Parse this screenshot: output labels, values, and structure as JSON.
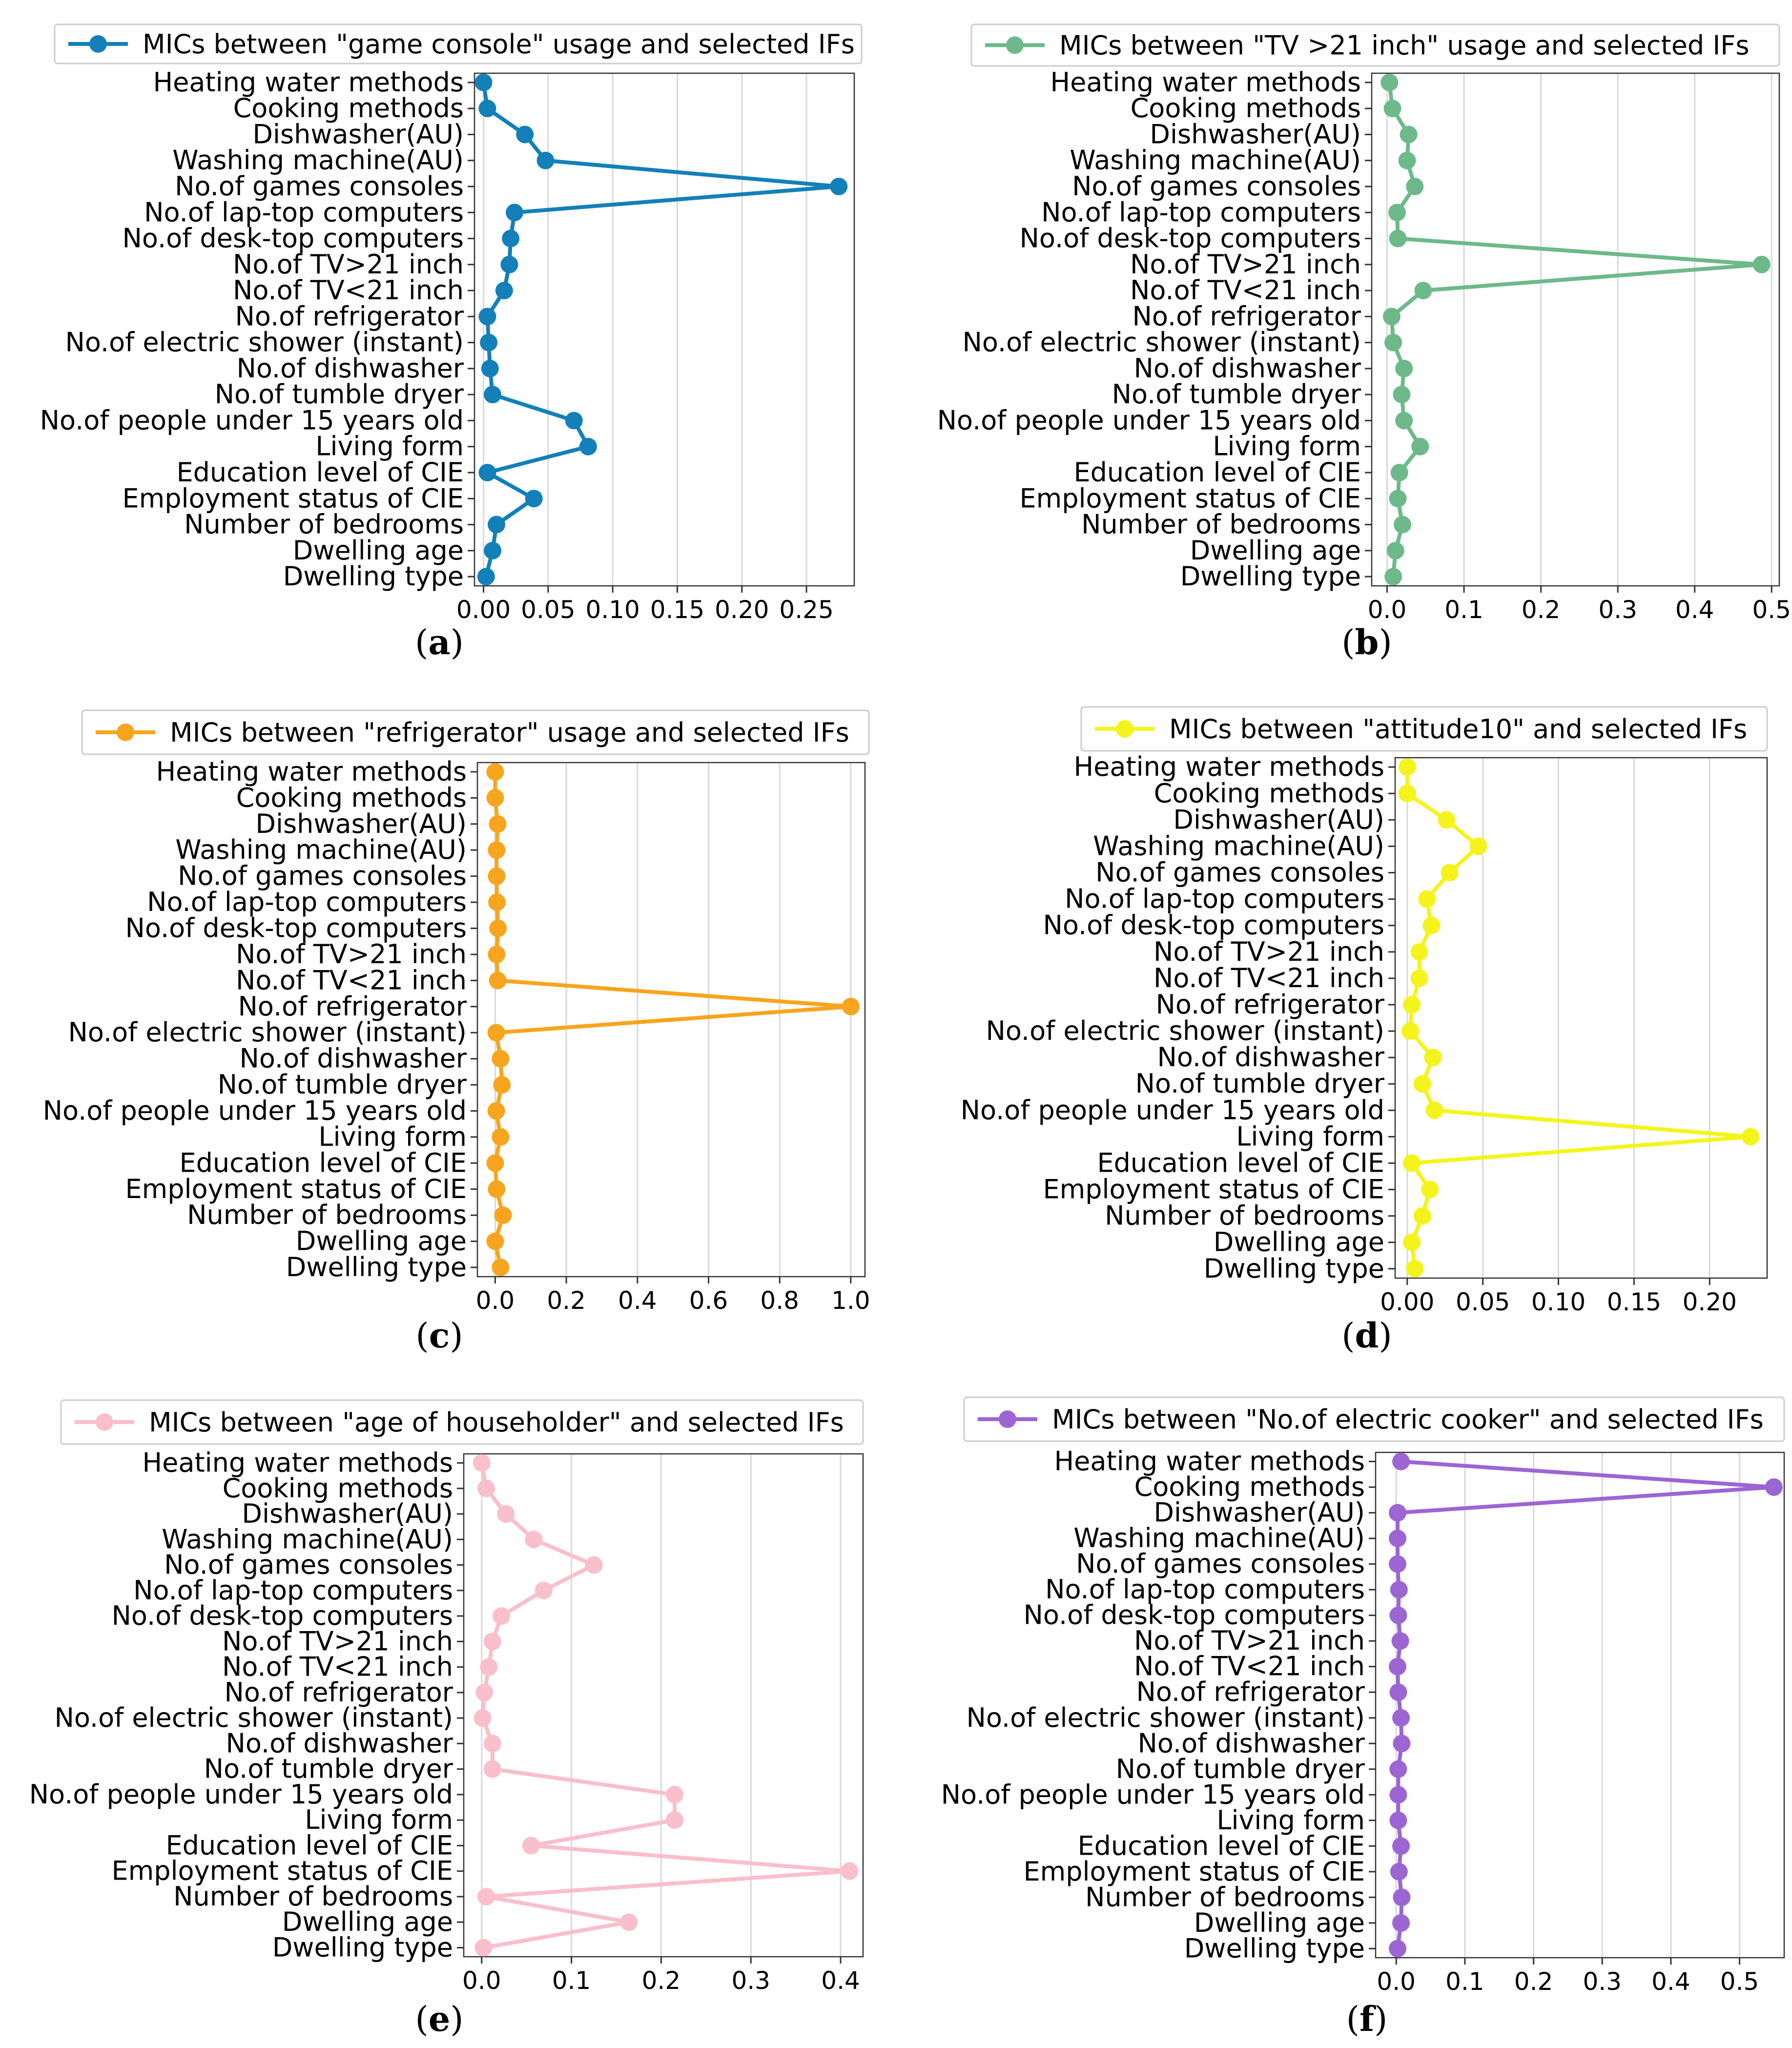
{
  "categories": [
    "Heating water methods",
    "Cooking methods",
    "Dishwasher(AU)",
    "Washing machine(AU)",
    "No.of games consoles",
    "No.of lap-top computers",
    "No.of desk-top computers",
    "No.of TV>21 inch",
    "No.of TV<21 inch",
    "No.of refrigerator",
    "No.of electric shower (instant)",
    "No.of dishwasher",
    "No.of tumble dryer",
    "No.of people under 15 years old",
    "Living form",
    "Education level of CIE",
    "Employment status of CIE",
    "Number of bedrooms",
    "Dwelling age",
    "Dwelling type"
  ],
  "chart_data": [
    {
      "type": "line",
      "panel": "(a)",
      "series": [
        {
          "name": "MICs between \"game console\" usage and selected IFs",
          "color": "#1380b9",
          "values": [
            0.0,
            0.003,
            0.032,
            0.048,
            0.275,
            0.024,
            0.021,
            0.02,
            0.016,
            0.003,
            0.004,
            0.005,
            0.007,
            0.07,
            0.081,
            0.003,
            0.039,
            0.01,
            0.007,
            0.002
          ]
        }
      ],
      "xlim": [
        -0.007,
        0.287
      ],
      "xticks": [
        0.0,
        0.05,
        0.1,
        0.15,
        0.2,
        0.25
      ],
      "xtick_labels": [
        "0.00",
        "0.05",
        "0.10",
        "0.15",
        "0.20",
        "0.25"
      ]
    },
    {
      "type": "line",
      "panel": "(b)",
      "series": [
        {
          "name": "MICs between \"TV >21 inch\" usage and selected IFs",
          "color": "#6db98a",
          "values": [
            0.003,
            0.007,
            0.028,
            0.026,
            0.036,
            0.013,
            0.014,
            0.487,
            0.047,
            0.006,
            0.008,
            0.022,
            0.019,
            0.022,
            0.043,
            0.016,
            0.014,
            0.02,
            0.011,
            0.008
          ]
        }
      ],
      "xlim": [
        -0.02,
        0.51
      ],
      "xticks": [
        0.0,
        0.1,
        0.2,
        0.3,
        0.4,
        0.5
      ],
      "xtick_labels": [
        "0.0",
        "0.1",
        "0.2",
        "0.3",
        "0.4",
        "0.5"
      ]
    },
    {
      "type": "line",
      "panel": "(c)",
      "series": [
        {
          "name": "MICs between \"refrigerator\" usage and selected IFs",
          "color": "#f7a51e",
          "values": [
            0.0,
            0.0,
            0.007,
            0.004,
            0.004,
            0.005,
            0.008,
            0.004,
            0.007,
            1.0,
            0.003,
            0.015,
            0.019,
            0.003,
            0.015,
            0.0,
            0.004,
            0.022,
            0.0,
            0.015
          ]
        }
      ],
      "xlim": [
        -0.05,
        1.04
      ],
      "xticks": [
        0.0,
        0.2,
        0.4,
        0.6,
        0.8,
        1.0
      ],
      "xtick_labels": [
        "0.0",
        "0.2",
        "0.4",
        "0.6",
        "0.8",
        "1.0"
      ]
    },
    {
      "type": "line",
      "panel": "(d)",
      "series": [
        {
          "name": "MICs between \"attitude10\" and selected IFs",
          "color": "#f4f41c",
          "values": [
            0.0,
            0.0,
            0.026,
            0.047,
            0.028,
            0.013,
            0.016,
            0.008,
            0.008,
            0.003,
            0.002,
            0.017,
            0.01,
            0.018,
            0.227,
            0.003,
            0.015,
            0.01,
            0.003,
            0.005
          ]
        }
      ],
      "xlim": [
        -0.008,
        0.238
      ],
      "xticks": [
        0.0,
        0.05,
        0.1,
        0.15,
        0.2
      ],
      "xtick_labels": [
        "0.00",
        "0.05",
        "0.10",
        "0.15",
        "0.20"
      ]
    },
    {
      "type": "line",
      "panel": "(e)",
      "series": [
        {
          "name": "MICs between \"age of householder\" and selected IFs",
          "color": "#f9bfcb",
          "values": [
            0.0,
            0.005,
            0.027,
            0.058,
            0.125,
            0.069,
            0.022,
            0.012,
            0.008,
            0.003,
            0.001,
            0.012,
            0.012,
            0.215,
            0.215,
            0.055,
            0.41,
            0.005,
            0.164,
            0.002
          ]
        }
      ],
      "xlim": [
        -0.02,
        0.425
      ],
      "xticks": [
        0.0,
        0.1,
        0.2,
        0.3,
        0.4
      ],
      "xtick_labels": [
        "0.0",
        "0.1",
        "0.2",
        "0.3",
        "0.4"
      ]
    },
    {
      "type": "line",
      "panel": "(f)",
      "series": [
        {
          "name": "MICs between \"No.of electric cooker\" and selected IFs",
          "color": "#9c65d4",
          "values": [
            0.007,
            0.55,
            0.002,
            0.002,
            0.002,
            0.004,
            0.003,
            0.006,
            0.002,
            0.003,
            0.007,
            0.008,
            0.003,
            0.003,
            0.003,
            0.007,
            0.004,
            0.008,
            0.007,
            0.002
          ]
        }
      ],
      "xlim": [
        -0.03,
        0.565
      ],
      "xticks": [
        0.0,
        0.1,
        0.2,
        0.3,
        0.4,
        0.5
      ],
      "xtick_labels": [
        "0.0",
        "0.1",
        "0.2",
        "0.3",
        "0.4",
        "0.5"
      ]
    }
  ]
}
